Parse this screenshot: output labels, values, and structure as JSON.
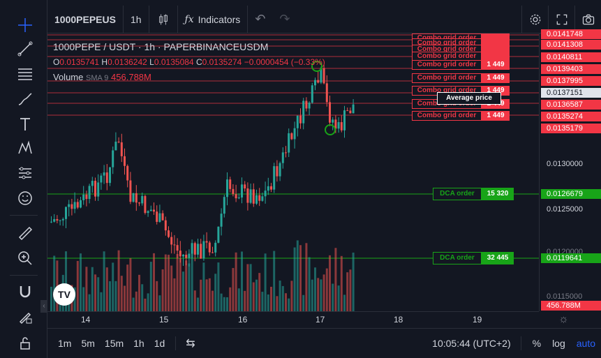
{
  "symbol": "1000PEPEUS",
  "interval": "1h",
  "indicators_label": "Indicators",
  "legend": {
    "title": "1000PEPE / USDT · 1h · PAPERBINANCEUSDM",
    "o_label": "O",
    "o": "0.0135741",
    "h_label": "H",
    "h": "0.0136242",
    "l_label": "L",
    "l": "0.0135084",
    "c_label": "C",
    "c": "0.0135274",
    "change": "−0.0000454 (−0.33%)",
    "volume_label": "Volume",
    "volume_ma": "SMA 9",
    "volume_value": "456.788M"
  },
  "price_labels": [
    {
      "text": "0.0141748",
      "style": "red"
    },
    {
      "text": "0.0141308",
      "style": "red"
    },
    {
      "text": "0.0140811",
      "style": "red"
    },
    {
      "text": "0.0139403",
      "style": "red"
    },
    {
      "text": "0.0137995",
      "style": "red"
    },
    {
      "text": "0.0137151",
      "style": "grey"
    },
    {
      "text": "0.0136587",
      "style": "red"
    },
    {
      "text": "0.0135274",
      "style": "red"
    },
    {
      "text": "0.0135179",
      "style": "red"
    },
    {
      "text": "0.0130000",
      "style": "plain"
    },
    {
      "text": "0.0126679",
      "style": "green"
    },
    {
      "text": "0.0125000",
      "style": "plain"
    },
    {
      "text": "0.0120000",
      "style": "plain"
    },
    {
      "text": "0.0119641",
      "style": "green"
    },
    {
      "text": "0.0115000",
      "style": "plain"
    },
    {
      "text": "456.788M",
      "style": "red"
    }
  ],
  "grid_orders": [
    {
      "label": "Combo grid order",
      "qty": ""
    },
    {
      "label": "Combo grid order",
      "qty": ""
    },
    {
      "label": "Combo grid order",
      "qty": ""
    },
    {
      "label": "Combo grid order",
      "qty": ""
    },
    {
      "label": "Combo grid order",
      "qty": "1 449"
    },
    {
      "label": "Combo grid order",
      "qty": "1 449"
    },
    {
      "label": "Combo grid order",
      "qty": "1 449"
    },
    {
      "label": "Combo grid order",
      "qty": "1 449"
    },
    {
      "label": "Combo grid order",
      "qty": "1 449"
    }
  ],
  "average_price_label": "Average price",
  "dca_orders": [
    {
      "label": "DCA order",
      "qty": "15 320"
    },
    {
      "label": "DCA order",
      "qty": "32 445"
    }
  ],
  "time_labels": [
    "14",
    "15",
    "16",
    "17",
    "18",
    "19"
  ],
  "timeframes": [
    "1m",
    "5m",
    "15m",
    "1h",
    "1d"
  ],
  "clock": "10:05:44 (UTC+2)",
  "scale_buttons": {
    "percent": "%",
    "log": "log",
    "auto": "auto"
  },
  "colors": {
    "up": "#26a69a",
    "down": "#ef5350",
    "grid_order": "#f23645",
    "dca": "#18a418",
    "auto": "#2962ff"
  }
}
